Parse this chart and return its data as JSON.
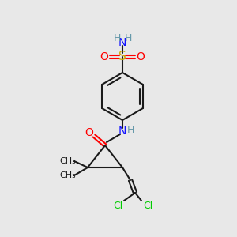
{
  "bg_color": "#e8e8e8",
  "bond_color": "#1a1a1a",
  "colors": {
    "N": "#1414ff",
    "O": "#ff0000",
    "S": "#ccaa00",
    "Cl": "#00cc00",
    "H": "#6699aa",
    "C": "#1a1a1a"
  },
  "figsize": [
    3.0,
    3.0
  ],
  "dpi": 100
}
